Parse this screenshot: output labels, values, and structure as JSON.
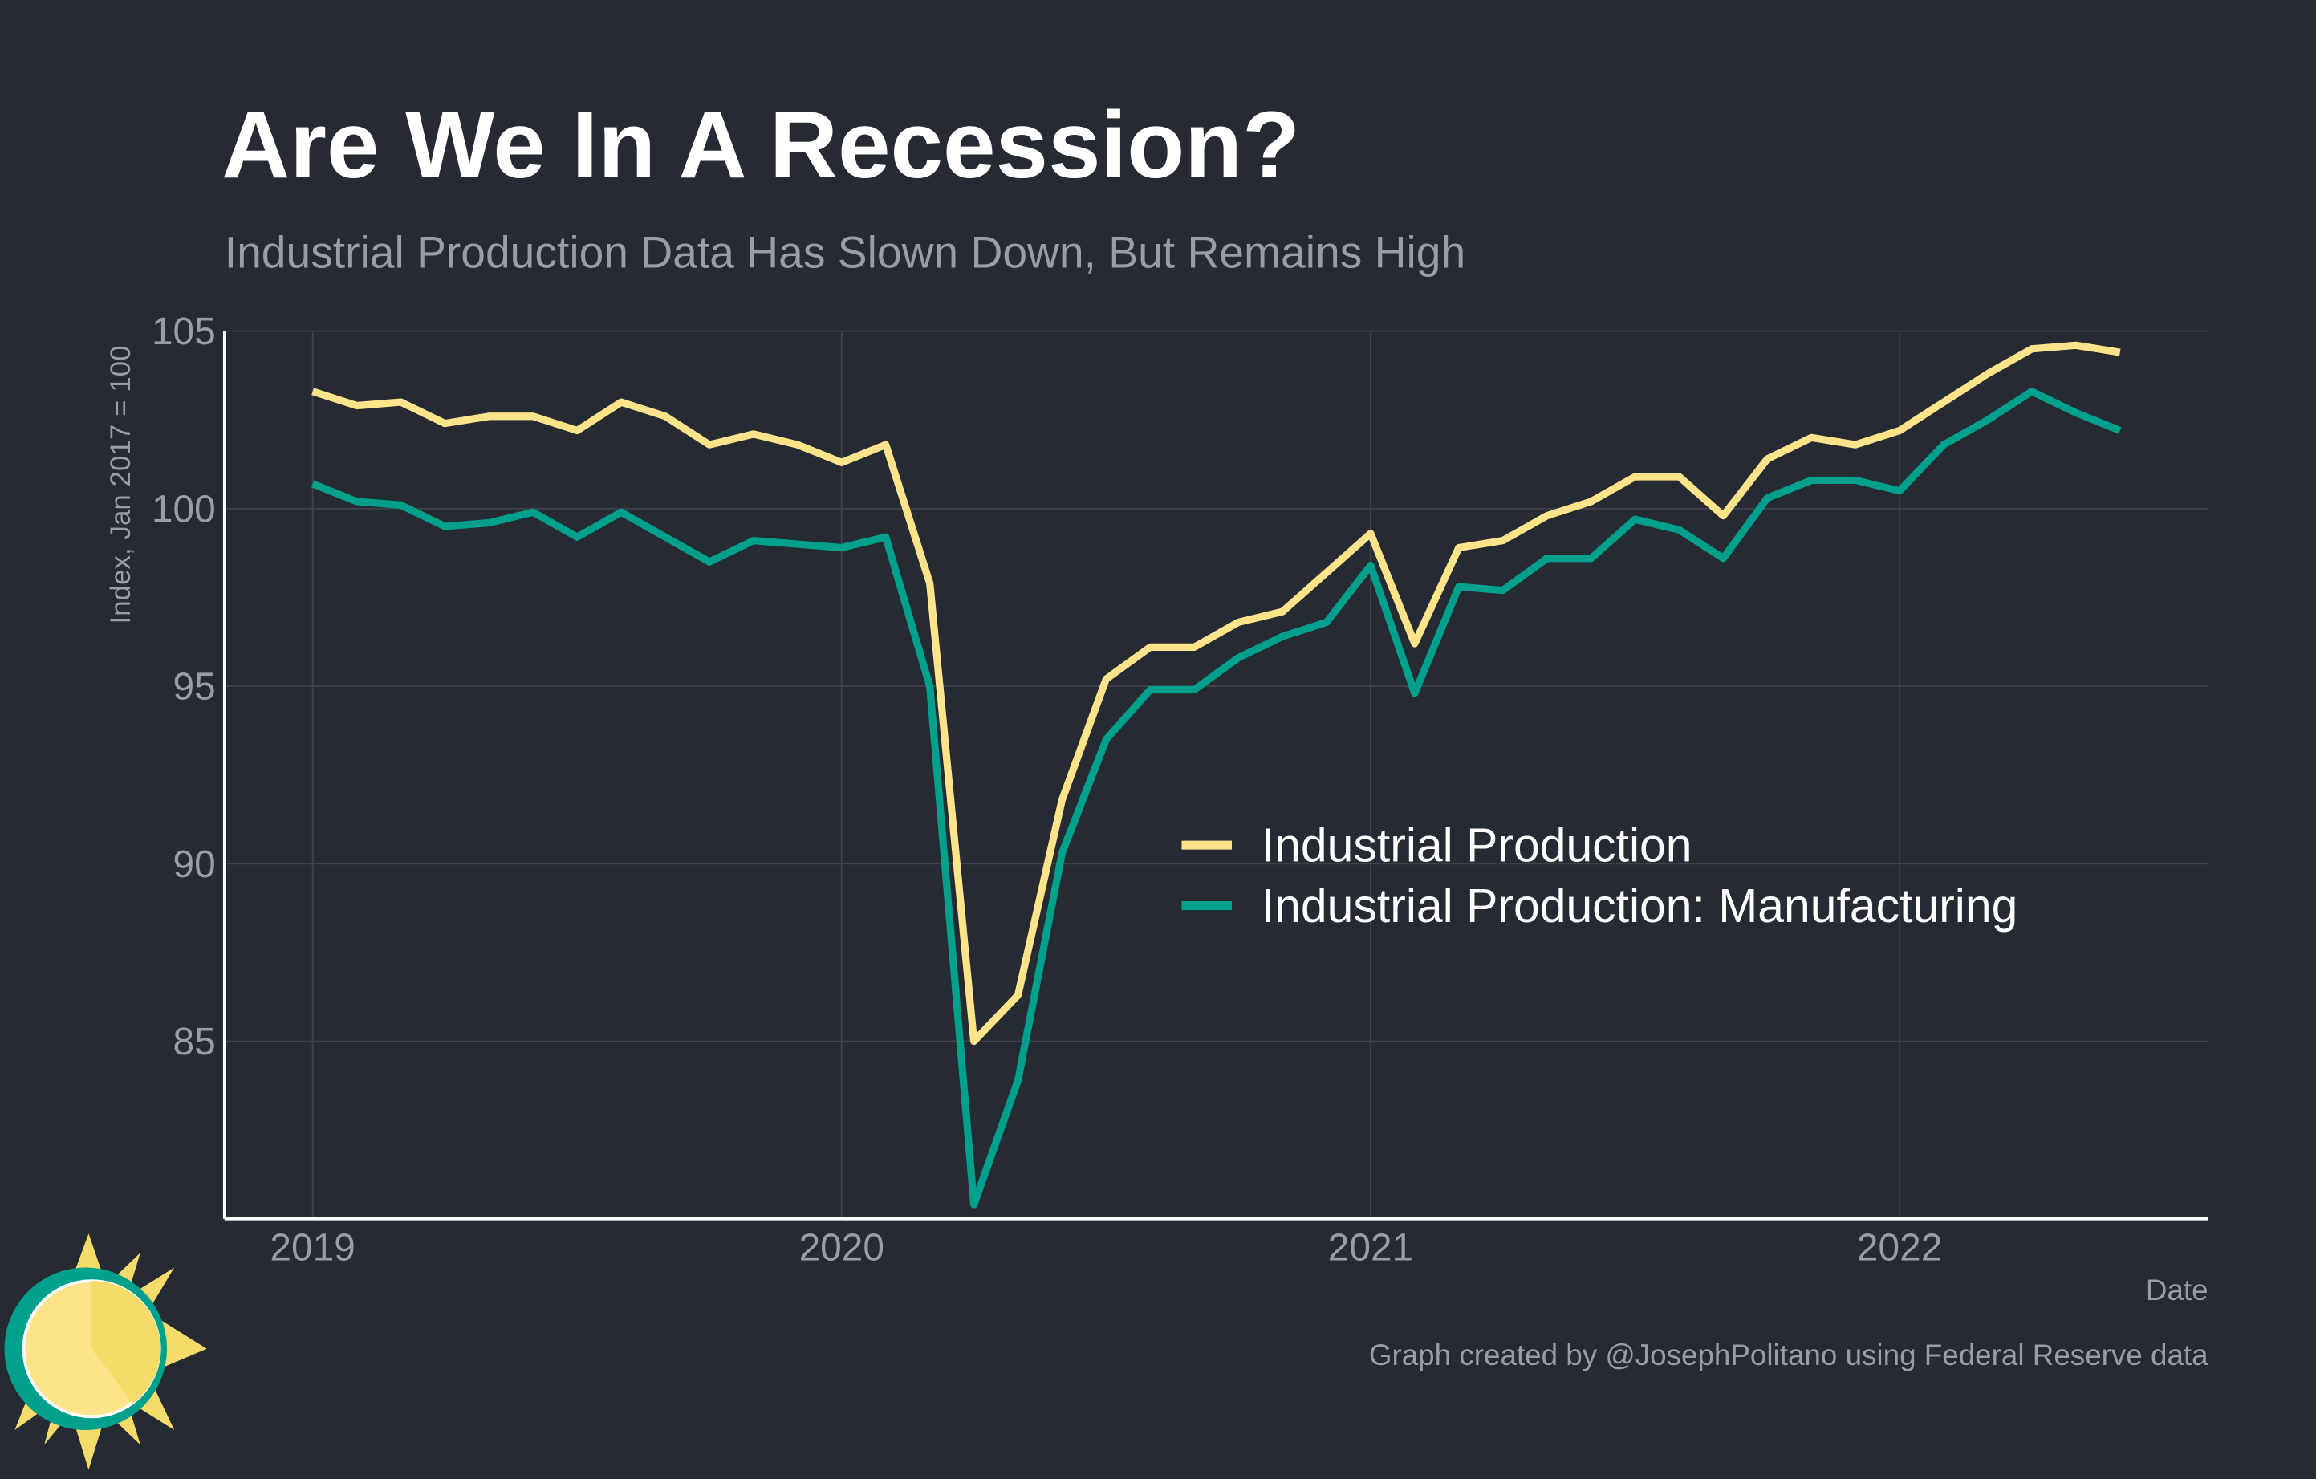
{
  "chart_data": {
    "type": "line",
    "title": "Are We In A Recession?",
    "subtitle": "Industrial Production Data Has Slown Down, But Remains High",
    "y_label": "Index, Jan 2017 = 100",
    "x_label": "Date",
    "caption": "Graph created by @JosephPolitano using Federal Reserve data",
    "x": [
      "2019-01",
      "2019-02",
      "2019-03",
      "2019-04",
      "2019-05",
      "2019-06",
      "2019-07",
      "2019-08",
      "2019-09",
      "2019-10",
      "2019-11",
      "2019-12",
      "2020-01",
      "2020-02",
      "2020-03",
      "2020-04",
      "2020-05",
      "2020-06",
      "2020-07",
      "2020-08",
      "2020-09",
      "2020-10",
      "2020-11",
      "2020-12",
      "2021-01",
      "2021-02",
      "2021-03",
      "2021-04",
      "2021-05",
      "2021-06",
      "2021-07",
      "2021-08",
      "2021-09",
      "2021-10",
      "2021-11",
      "2021-12",
      "2022-01",
      "2022-02",
      "2022-03",
      "2022-04",
      "2022-05",
      "2022-06"
    ],
    "series": [
      {
        "name": "Industrial Production",
        "color": "#fde48a",
        "values": [
          103.3,
          102.9,
          103.0,
          102.4,
          102.6,
          102.6,
          102.2,
          103.0,
          102.6,
          101.8,
          102.1,
          101.8,
          101.3,
          101.8,
          97.9,
          85.0,
          86.3,
          91.8,
          95.2,
          96.1,
          96.1,
          96.8,
          97.1,
          98.2,
          99.3,
          96.2,
          98.9,
          99.1,
          99.8,
          100.2,
          100.9,
          100.9,
          99.8,
          101.4,
          102.0,
          101.8,
          102.2,
          103.0,
          103.8,
          104.5,
          104.6,
          104.4
        ]
      },
      {
        "name": "Industrial Production: Manufacturing",
        "color": "#00a18c",
        "values": [
          100.7,
          100.2,
          100.1,
          99.5,
          99.6,
          99.9,
          99.2,
          99.9,
          99.2,
          98.5,
          99.1,
          99.0,
          98.9,
          99.2,
          95.0,
          80.4,
          83.9,
          90.3,
          93.5,
          94.9,
          94.9,
          95.8,
          96.4,
          96.8,
          98.4,
          94.8,
          97.8,
          97.7,
          98.6,
          98.6,
          99.7,
          99.4,
          98.6,
          100.3,
          100.8,
          100.8,
          100.5,
          101.8,
          102.5,
          103.3,
          102.7,
          102.2
        ]
      }
    ],
    "xlim": [
      "2018-11",
      "2022-08"
    ],
    "xticks": [
      {
        "value": "2019-01",
        "label": "2019"
      },
      {
        "value": "2020-01",
        "label": "2020"
      },
      {
        "value": "2021-01",
        "label": "2021"
      },
      {
        "value": "2022-01",
        "label": "2022"
      }
    ],
    "ylim": [
      80,
      105
    ],
    "yticks": [
      85,
      90,
      95,
      100,
      105
    ],
    "grid": true,
    "legend": "center-right"
  }
}
